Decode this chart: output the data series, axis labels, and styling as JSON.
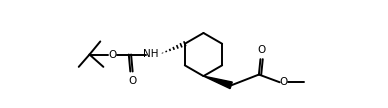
{
  "bg_color": "#ffffff",
  "line_color": "#000000",
  "lw": 1.4,
  "figsize": [
    3.88,
    1.08
  ],
  "dpi": 100,
  "font_size": 7.5,
  "font_size_small": 7.0
}
